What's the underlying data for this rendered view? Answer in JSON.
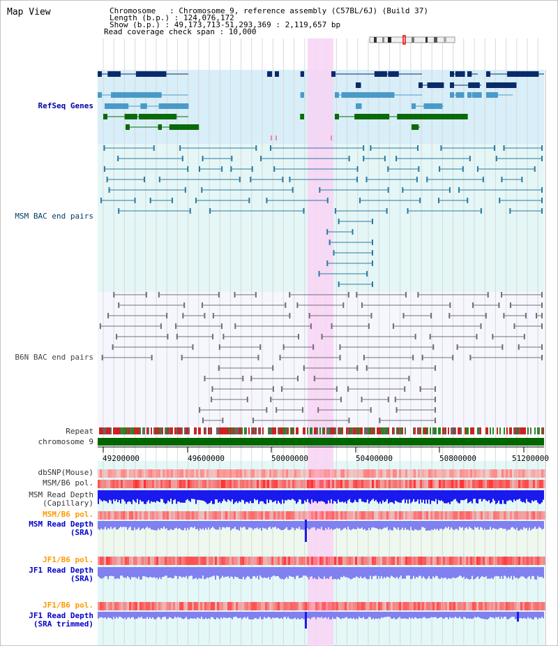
{
  "page": {
    "title": "Map View"
  },
  "info": {
    "chromosome_line": "Chromosome   : Chromosome 9, reference assembly (C57BL/6J) (Build 37)",
    "length_line": "Length (b.p.) : 124,076,172",
    "show_line": "Show (b.p.) : 49,173,713-51,293,369 : 2,119,657 bp",
    "coverage_line": "Read coverage check span : 10,000"
  },
  "tracks": {
    "refseq": "RefSeq Genes",
    "msm_bac": "MSM BAC end pairs",
    "b6n_bac": "B6N BAC end pairs",
    "repeat": "Repeat",
    "chromosome": "chromosome 9",
    "dbsnp": "dbSNP(Mouse)",
    "msm_b6_pol": "MSM/B6 pol.",
    "msm_read_cap_1": "MSM Read Depth",
    "msm_read_cap_2": "(Capillary)",
    "msm_b6_pol_2": "MSM/B6 pol.",
    "msm_read_sra_1": "MSM Read Depth",
    "msm_read_sra_2": "(SRA)",
    "jf1_b6_pol": "JF1/B6 pol.",
    "jf1_read_sra_1": "JF1 Read Depth",
    "jf1_read_sra_2": "(SRA)",
    "jf1_b6_pol_2": "JF1/B6 pol.",
    "jf1_read_trim_1": "JF1 Read Depth",
    "jf1_read_trim_2": "(SRA trimmed)"
  },
  "axis": {
    "ticks": [
      "49200000",
      "49600000",
      "50000000",
      "50400000",
      "50800000",
      "51200000"
    ]
  },
  "colors": {
    "refseq_bg": "#d8eef8",
    "msm_bg": "#e4f6f6",
    "b6n_bg": "#f6f6ff",
    "highlight": "#f8d4f4",
    "chromosome": "#006600",
    "dark_navy": "#0a2a6a",
    "light_blue": "#4a9ac8",
    "gene_green": "#0a6a0a",
    "msm_line": "#2a7aa0",
    "b6n_line": "#707070",
    "depth_blue": "#1a1aee",
    "depth_light": "#8080f0"
  }
}
